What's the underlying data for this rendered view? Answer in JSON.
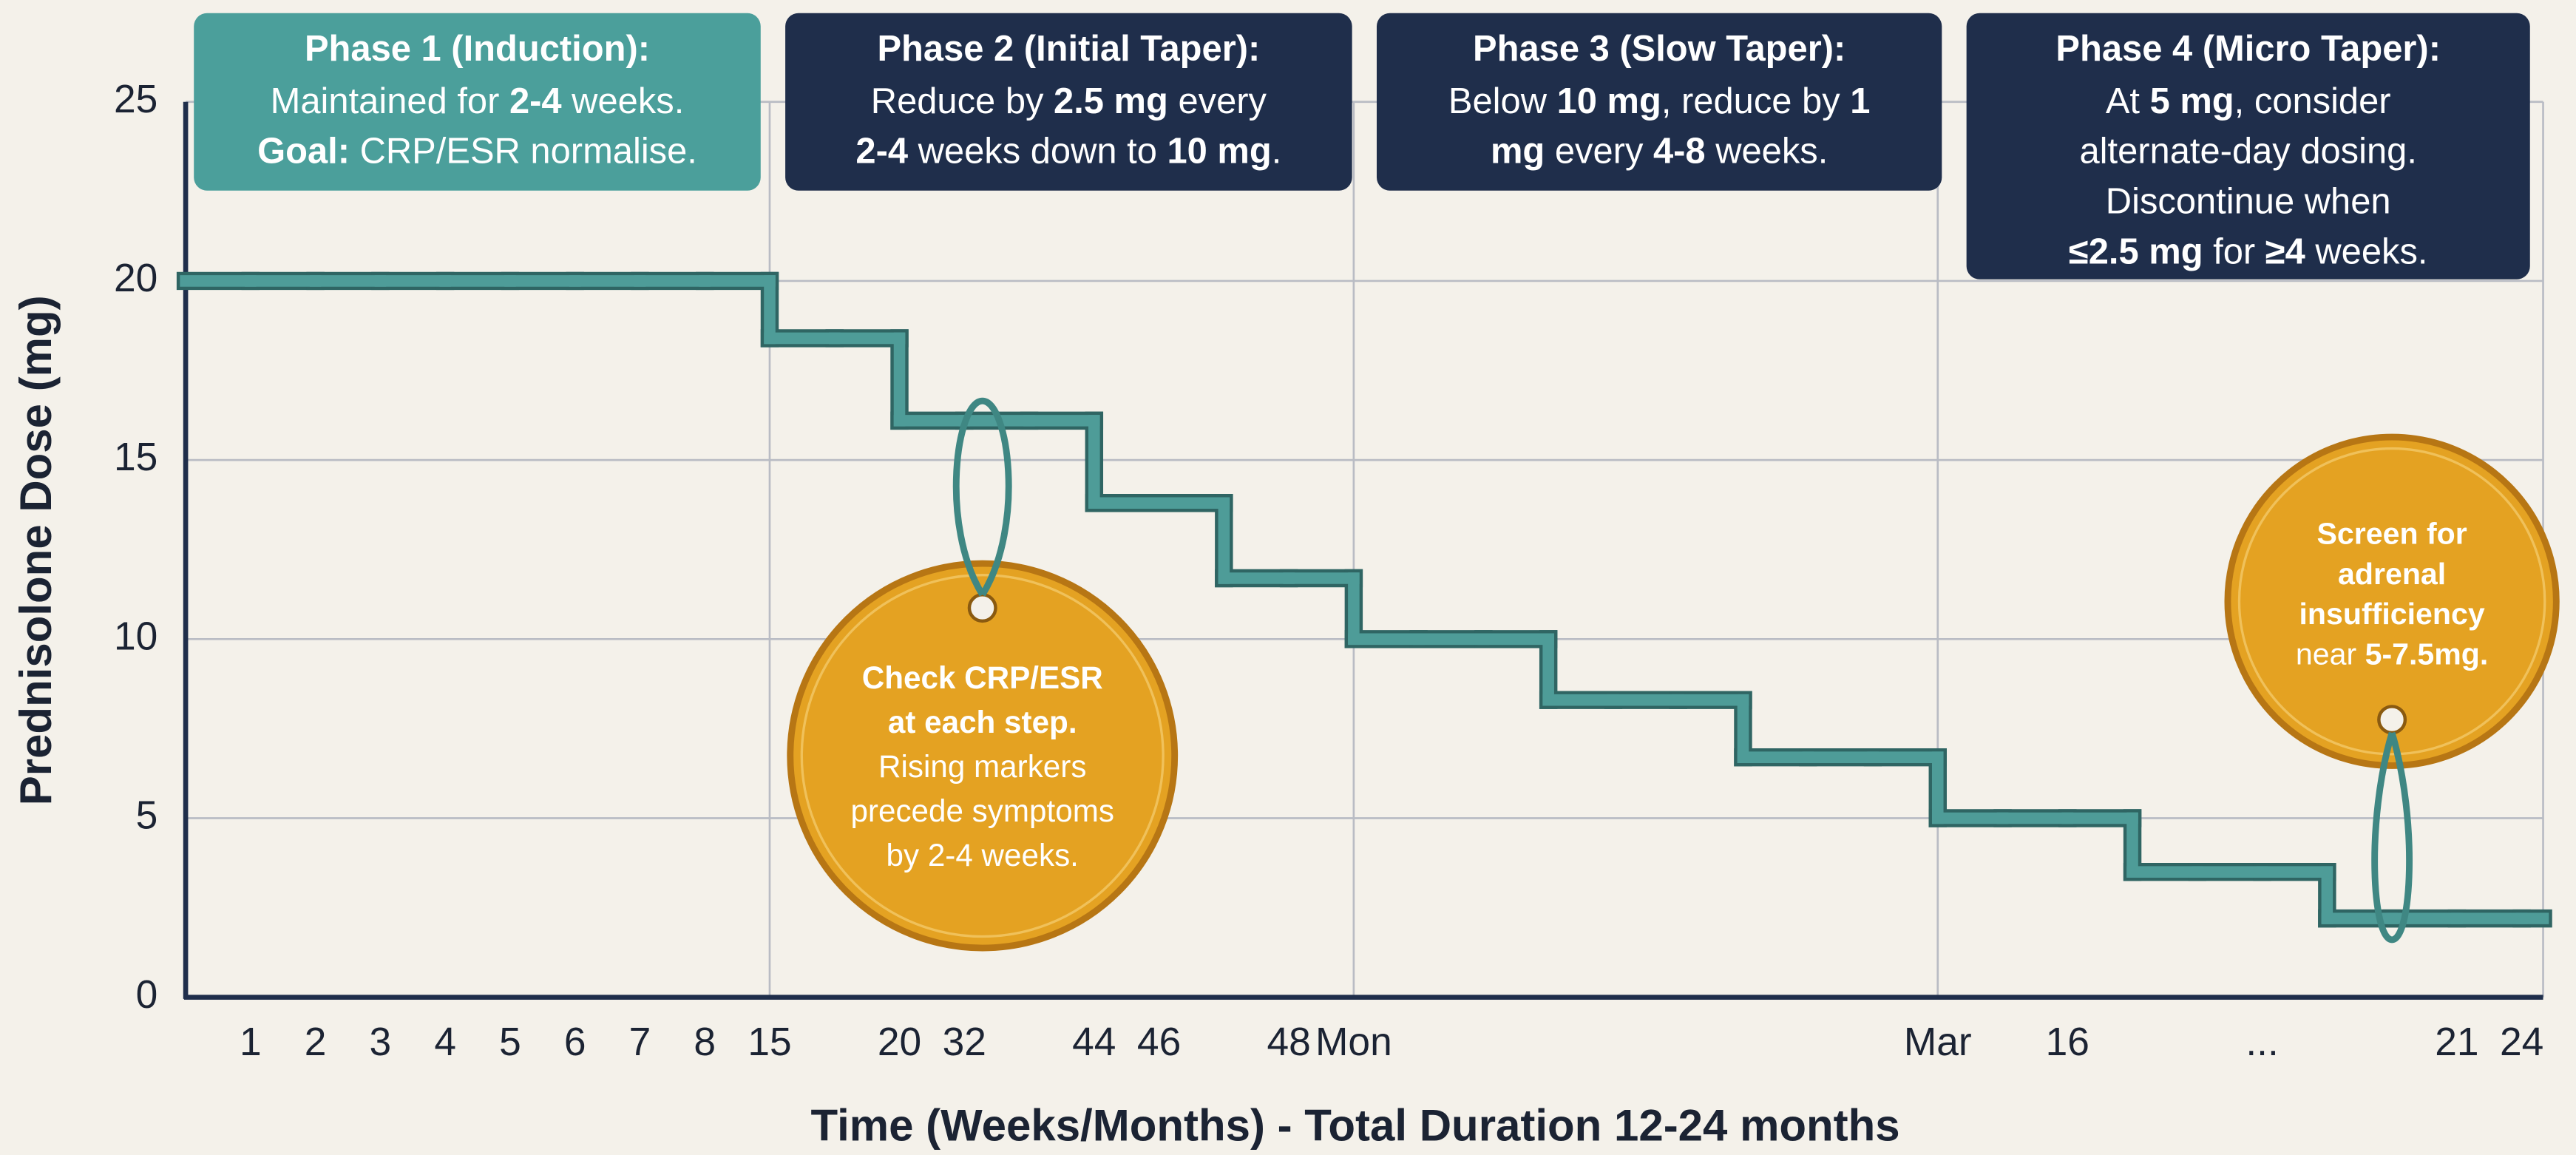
{
  "chart_data": {
    "type": "step",
    "xlabel": "Time (Weeks/Months) - Total Duration 12-24 months",
    "ylabel": "Prednisolone Dose (mg)",
    "categories": [
      null,
      "1",
      "2",
      "3",
      "4",
      "5",
      "6",
      "7",
      "8",
      "15",
      null,
      "20",
      "32",
      null,
      "44",
      "46",
      null,
      "48",
      "Mon",
      null,
      null,
      null,
      null,
      null,
      null,
      null,
      null,
      "Mar",
      null,
      "16",
      null,
      null,
      "...",
      null,
      null,
      "21",
      "24"
    ],
    "series": [
      {
        "color": "#4e9c98",
        "values": [
          20,
          20,
          20,
          20,
          20,
          20,
          20,
          20,
          20,
          18.4,
          18.4,
          16.1,
          16.1,
          16.1,
          13.8,
          13.8,
          11.7,
          11.7,
          10,
          10,
          10,
          8.3,
          8.3,
          8.3,
          6.7,
          6.7,
          6.7,
          5,
          5,
          5,
          3.5,
          3.5,
          3.5,
          2.2,
          2.2,
          2.2,
          2.2
        ]
      }
    ],
    "ylim": [
      0,
      25
    ],
    "yticks": [
      0,
      5,
      10,
      15,
      20,
      25
    ],
    "grid": true,
    "annotations": [
      {
        "color": "#4b9f9b",
        "title": "Phase 1 (Induction):",
        "lines": [
          [
            {
              "text": "Maintained for "
            },
            {
              "text": "2-4",
              "bold": true
            },
            {
              "text": " weeks."
            }
          ],
          [
            {
              "text": "Goal:",
              "bold": true
            },
            {
              "text": " CRP/ESR normalise."
            }
          ]
        ]
      },
      {
        "color": "#1f2e4b",
        "title": "Phase 2 (Initial Taper):",
        "lines": [
          [
            {
              "text": "Reduce by "
            },
            {
              "text": "2.5 mg",
              "bold": true
            },
            {
              "text": " every"
            }
          ],
          [
            {
              "text": "2-4",
              "bold": true
            },
            {
              "text": " weeks down to "
            },
            {
              "text": "10 mg",
              "bold": true
            },
            {
              "text": "."
            }
          ]
        ]
      },
      {
        "color": "#1f2e4b",
        "title": "Phase 3 (Slow Taper):",
        "lines": [
          [
            {
              "text": "Below "
            },
            {
              "text": "10 mg",
              "bold": true
            },
            {
              "text": ", reduce by "
            },
            {
              "text": "1",
              "bold": true
            }
          ],
          [
            {
              "text": "mg",
              "bold": true
            },
            {
              "text": " every "
            },
            {
              "text": "4-8",
              "bold": true
            },
            {
              "text": " weeks."
            }
          ]
        ]
      },
      {
        "color": "#1f2e4b",
        "title": "Phase 4 (Micro Taper):",
        "lines": [
          [
            {
              "text": "At "
            },
            {
              "text": "5 mg",
              "bold": true
            },
            {
              "text": ", consider"
            }
          ],
          [
            {
              "text": "alternate-day dosing."
            }
          ],
          [
            {
              "text": "Discontinue when"
            }
          ],
          [
            {
              "text": "≤2.5 mg",
              "bold": true
            },
            {
              "text": " for "
            },
            {
              "text": "≥4",
              "bold": true
            },
            {
              "text": " weeks."
            }
          ]
        ]
      }
    ],
    "tags": [
      {
        "color": "#e4a222",
        "lines": [
          [
            {
              "text": "Check CRP/ESR",
              "bold": true
            }
          ],
          [
            {
              "text": "at each step.",
              "bold": true
            }
          ],
          [
            {
              "text": "Rising markers"
            }
          ],
          [
            {
              "text": "precede symptoms"
            }
          ],
          [
            {
              "text": "by 2-4 weeks."
            }
          ]
        ]
      },
      {
        "color": "#e4a222",
        "lines": [
          [
            {
              "text": "Screen for",
              "bold": true
            }
          ],
          [
            {
              "text": "adrenal",
              "bold": true
            }
          ],
          [
            {
              "text": "insufficiency",
              "bold": true
            }
          ],
          [
            {
              "text": "near "
            },
            {
              "text": "5-7.5mg.",
              "bold": true
            }
          ]
        ]
      }
    ]
  }
}
